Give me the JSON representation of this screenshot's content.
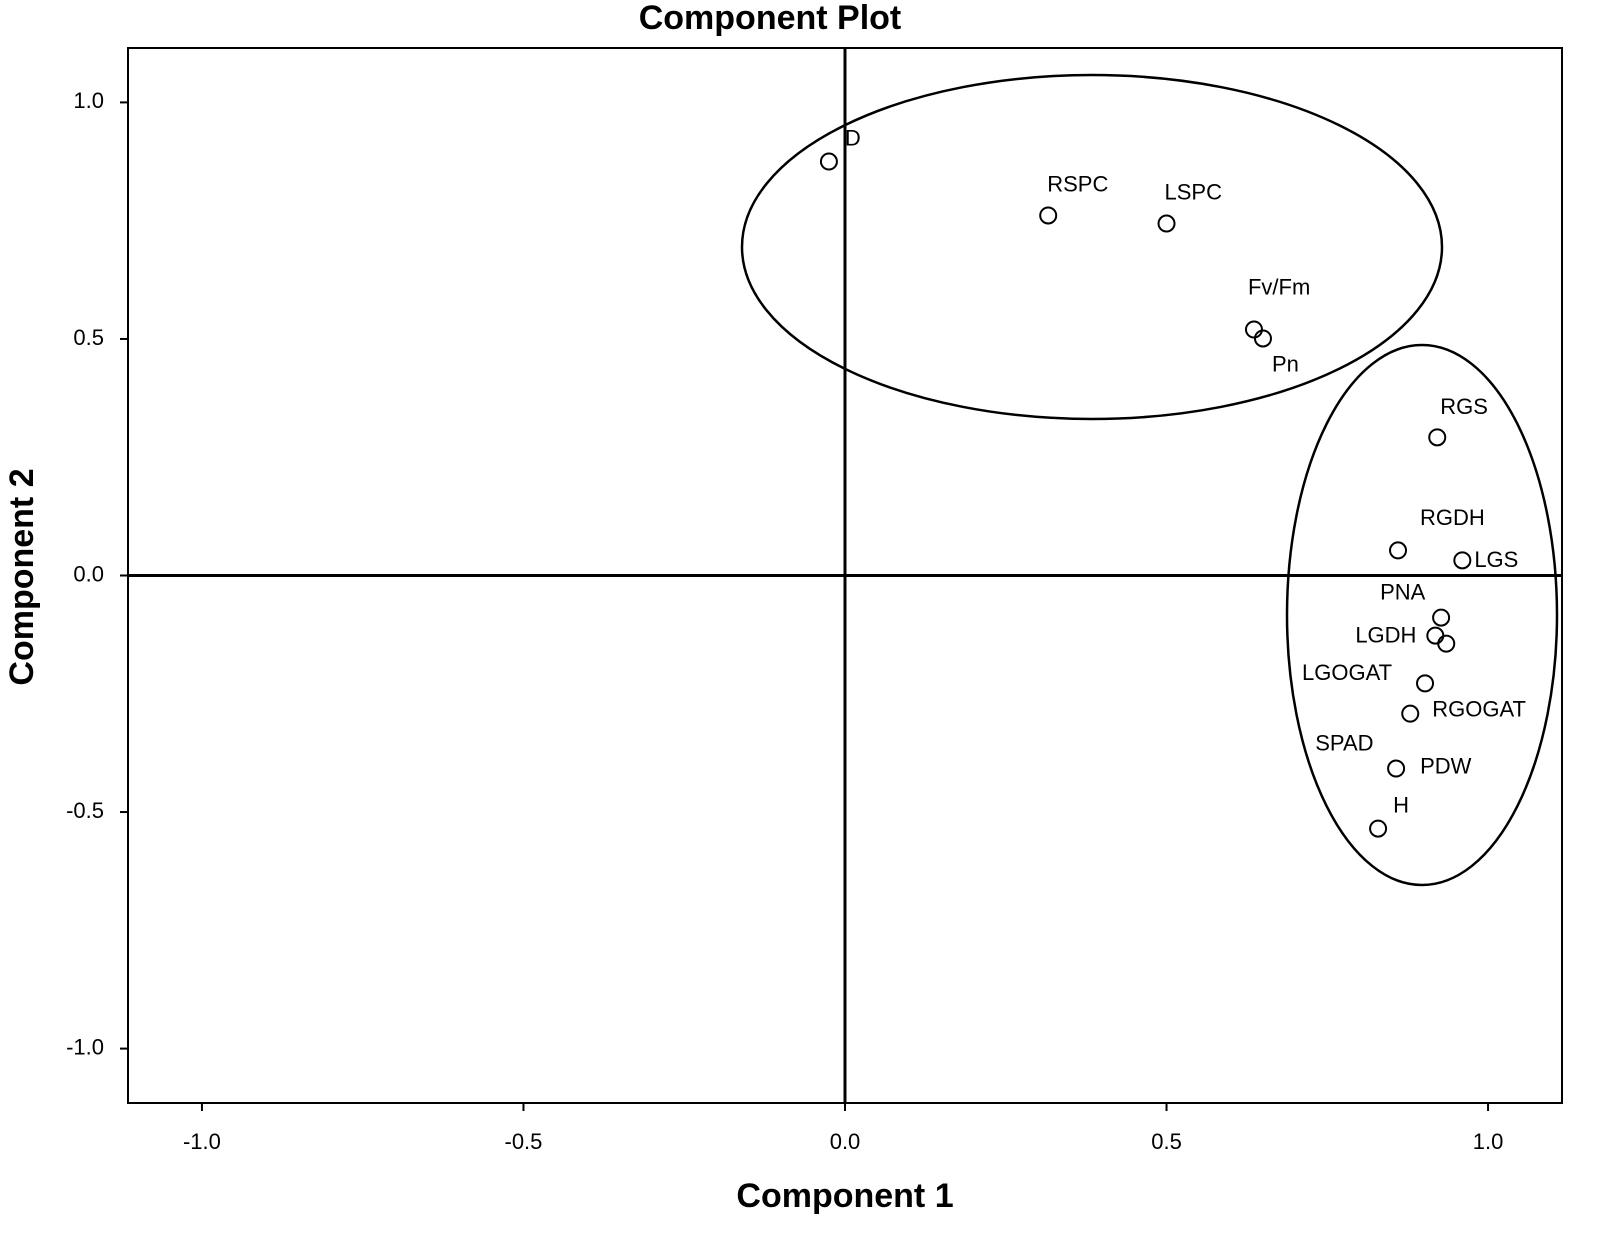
{
  "chart_data": {
    "type": "scatter",
    "title": "Component Plot",
    "x_label": "Component 1",
    "y_label": "Component 2",
    "point_labels": [
      "D",
      "RSPC",
      "LSPC",
      "Fv/Fm",
      "Pn",
      "RGS",
      "RGDH",
      "LGS",
      "PNA",
      "LGDH",
      "SPAD",
      "LGOGAT",
      "RGOGAT",
      "PDW",
      "H"
    ],
    "x": [
      -0.025,
      0.316,
      0.5,
      0.636,
      0.65,
      0.921,
      0.86,
      0.96,
      0.927,
      0.918,
      0.935,
      0.902,
      0.879,
      0.857,
      0.829
    ],
    "values": [
      0.875,
      0.761,
      0.744,
      0.52,
      0.501,
      0.292,
      0.053,
      0.032,
      -0.089,
      -0.127,
      -0.144,
      -0.228,
      -0.292,
      -0.408,
      -0.535
    ],
    "xlim": [
      -1.115,
      1.115
    ],
    "ylim": [
      -1.115,
      1.115
    ],
    "xticks": [
      {
        "value": -1,
        "label": "-1.0"
      },
      {
        "value": -0.5,
        "label": "-0.5"
      },
      {
        "value": 0,
        "label": "0.0"
      },
      {
        "value": 0.5,
        "label": "0.5"
      },
      {
        "value": 1,
        "label": "1.0"
      }
    ],
    "yticks": [
      {
        "value": -1,
        "label": "-1.0"
      },
      {
        "value": -0.5,
        "label": "-0.5"
      },
      {
        "value": 0,
        "label": "0.0"
      },
      {
        "value": 0.5,
        "label": "0.5"
      },
      {
        "value": 1,
        "label": "1.0"
      }
    ],
    "marker_color": "#000000"
  }
}
